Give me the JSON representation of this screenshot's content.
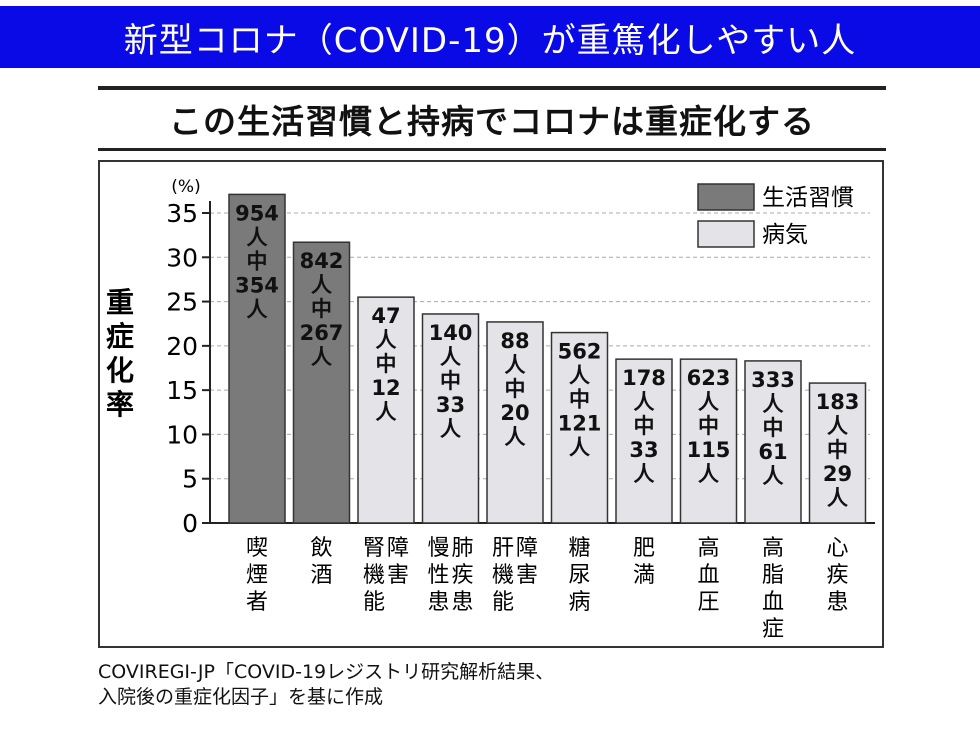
{
  "banner": {
    "title": "新型コロナ（COVID-19）が重篤化しやすい人"
  },
  "heading": "この生活習慣と持病でコロナは重症化する",
  "source": {
    "line1": "COVIREGI-JP「COVID-19レジストリ研究解析結果、",
    "line2": "入院後の重症化因子」を基に作成"
  },
  "colors": {
    "banner": "#0a0ae6",
    "lifestyle": "#7a7a7a",
    "disease": "#e4e4e8"
  },
  "chart_data": {
    "type": "bar",
    "ylabel": "重症化率",
    "yunit": "(%)",
    "ylim": [
      0,
      35
    ],
    "yticks": [
      0,
      5,
      10,
      15,
      20,
      25,
      30,
      35
    ],
    "grid": true,
    "legend_position": "top-right",
    "legend": [
      {
        "label": "生活習慣",
        "group": "lifestyle"
      },
      {
        "label": "病気",
        "group": "disease"
      }
    ],
    "categories": [
      "喫煙者",
      "飲酒",
      "腎障害機能",
      "慢性肺疾患",
      "肝障害機能",
      "糖尿病",
      "肥満",
      "高血圧",
      "高脂血症",
      "心疾患"
    ],
    "category_columns": [
      [
        "喫煙者"
      ],
      [
        "飲酒"
      ],
      [
        "障害",
        "腎機能"
      ],
      [
        "肺疾患",
        "慢性患"
      ],
      [
        "障害",
        "肝機能"
      ],
      [
        "糖尿病"
      ],
      [
        "肥満"
      ],
      [
        "高血圧"
      ],
      [
        "高脂血症"
      ],
      [
        "心疾患"
      ]
    ],
    "values": [
      37.1,
      31.7,
      25.5,
      23.6,
      22.7,
      21.5,
      18.5,
      18.5,
      18.3,
      15.8
    ],
    "groups": [
      "lifestyle",
      "lifestyle",
      "disease",
      "disease",
      "disease",
      "disease",
      "disease",
      "disease",
      "disease",
      "disease"
    ],
    "bar_labels": [
      [
        "954",
        "人",
        "中",
        "354",
        "人"
      ],
      [
        "842",
        "人",
        "中",
        "267",
        "人"
      ],
      [
        "47",
        "人",
        "中",
        "12",
        "人"
      ],
      [
        "140",
        "人",
        "中",
        "33",
        "人"
      ],
      [
        "88",
        "人",
        "中",
        "20",
        "人"
      ],
      [
        "562",
        "人",
        "中",
        "121",
        "人"
      ],
      [
        "178",
        "人",
        "中",
        "33",
        "人"
      ],
      [
        "623",
        "人",
        "中",
        "115",
        "人"
      ],
      [
        "333",
        "人",
        "中",
        "61",
        "人"
      ],
      [
        "183",
        "人",
        "中",
        "29",
        "人"
      ]
    ]
  }
}
